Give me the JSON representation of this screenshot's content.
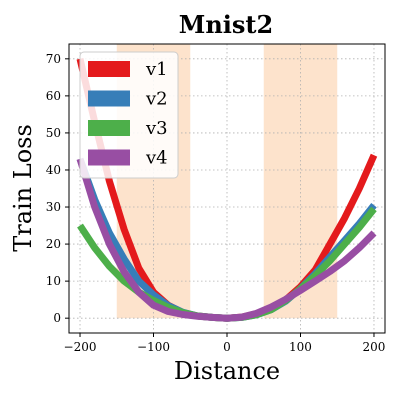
{
  "chart_data": {
    "type": "line",
    "title": "Mnist2",
    "xlabel": "Distance",
    "ylabel": "Train Loss",
    "xlim": [
      -215,
      215
    ],
    "ylim": [
      -4,
      74
    ],
    "x_ticks": [
      -200,
      -100,
      0,
      100,
      200
    ],
    "y_ticks": [
      0,
      10,
      20,
      30,
      40,
      50,
      60,
      70
    ],
    "grid": true,
    "legend_position": "top-left",
    "shaded_regions": [
      {
        "x_from": -150,
        "x_to": -50,
        "color": "#fde3cc"
      },
      {
        "x_from": 50,
        "x_to": 150,
        "color": "#fde3cc"
      }
    ],
    "x": [
      -200,
      -180,
      -160,
      -140,
      -120,
      -100,
      -80,
      -60,
      -40,
      -20,
      0,
      20,
      40,
      60,
      80,
      100,
      120,
      140,
      160,
      180,
      200
    ],
    "series": [
      {
        "name": "v1",
        "color": "#e41a1c",
        "values": [
          70,
          53,
          37,
          24,
          13.5,
          7,
          3.5,
          1.5,
          0.6,
          0.2,
          0,
          0.3,
          1.2,
          2.8,
          5,
          8.5,
          13,
          20,
          27,
          35,
          44
        ]
      },
      {
        "name": "v2",
        "color": "#377eb8",
        "values": [
          43,
          32,
          23,
          16,
          10,
          6.3,
          3.4,
          1.6,
          0.6,
          0.2,
          0,
          0.2,
          0.9,
          2.3,
          4.6,
          8,
          12,
          16.5,
          21,
          25.5,
          30.5
        ]
      },
      {
        "name": "v3",
        "color": "#4daf4a",
        "values": [
          25,
          19,
          14,
          10,
          7,
          4.8,
          2.9,
          1.5,
          0.6,
          0.2,
          0,
          0.2,
          0.9,
          2.3,
          4.8,
          7.9,
          11.5,
          15.5,
          20,
          24.5,
          29.5
        ]
      },
      {
        "name": "v4",
        "color": "#984ea3",
        "values": [
          43,
          30,
          20,
          12.5,
          7,
          3.5,
          1.8,
          1,
          0.5,
          0.2,
          0,
          0.3,
          1.3,
          3,
          5.1,
          7.5,
          10,
          12.6,
          15.5,
          19,
          23
        ]
      }
    ]
  }
}
